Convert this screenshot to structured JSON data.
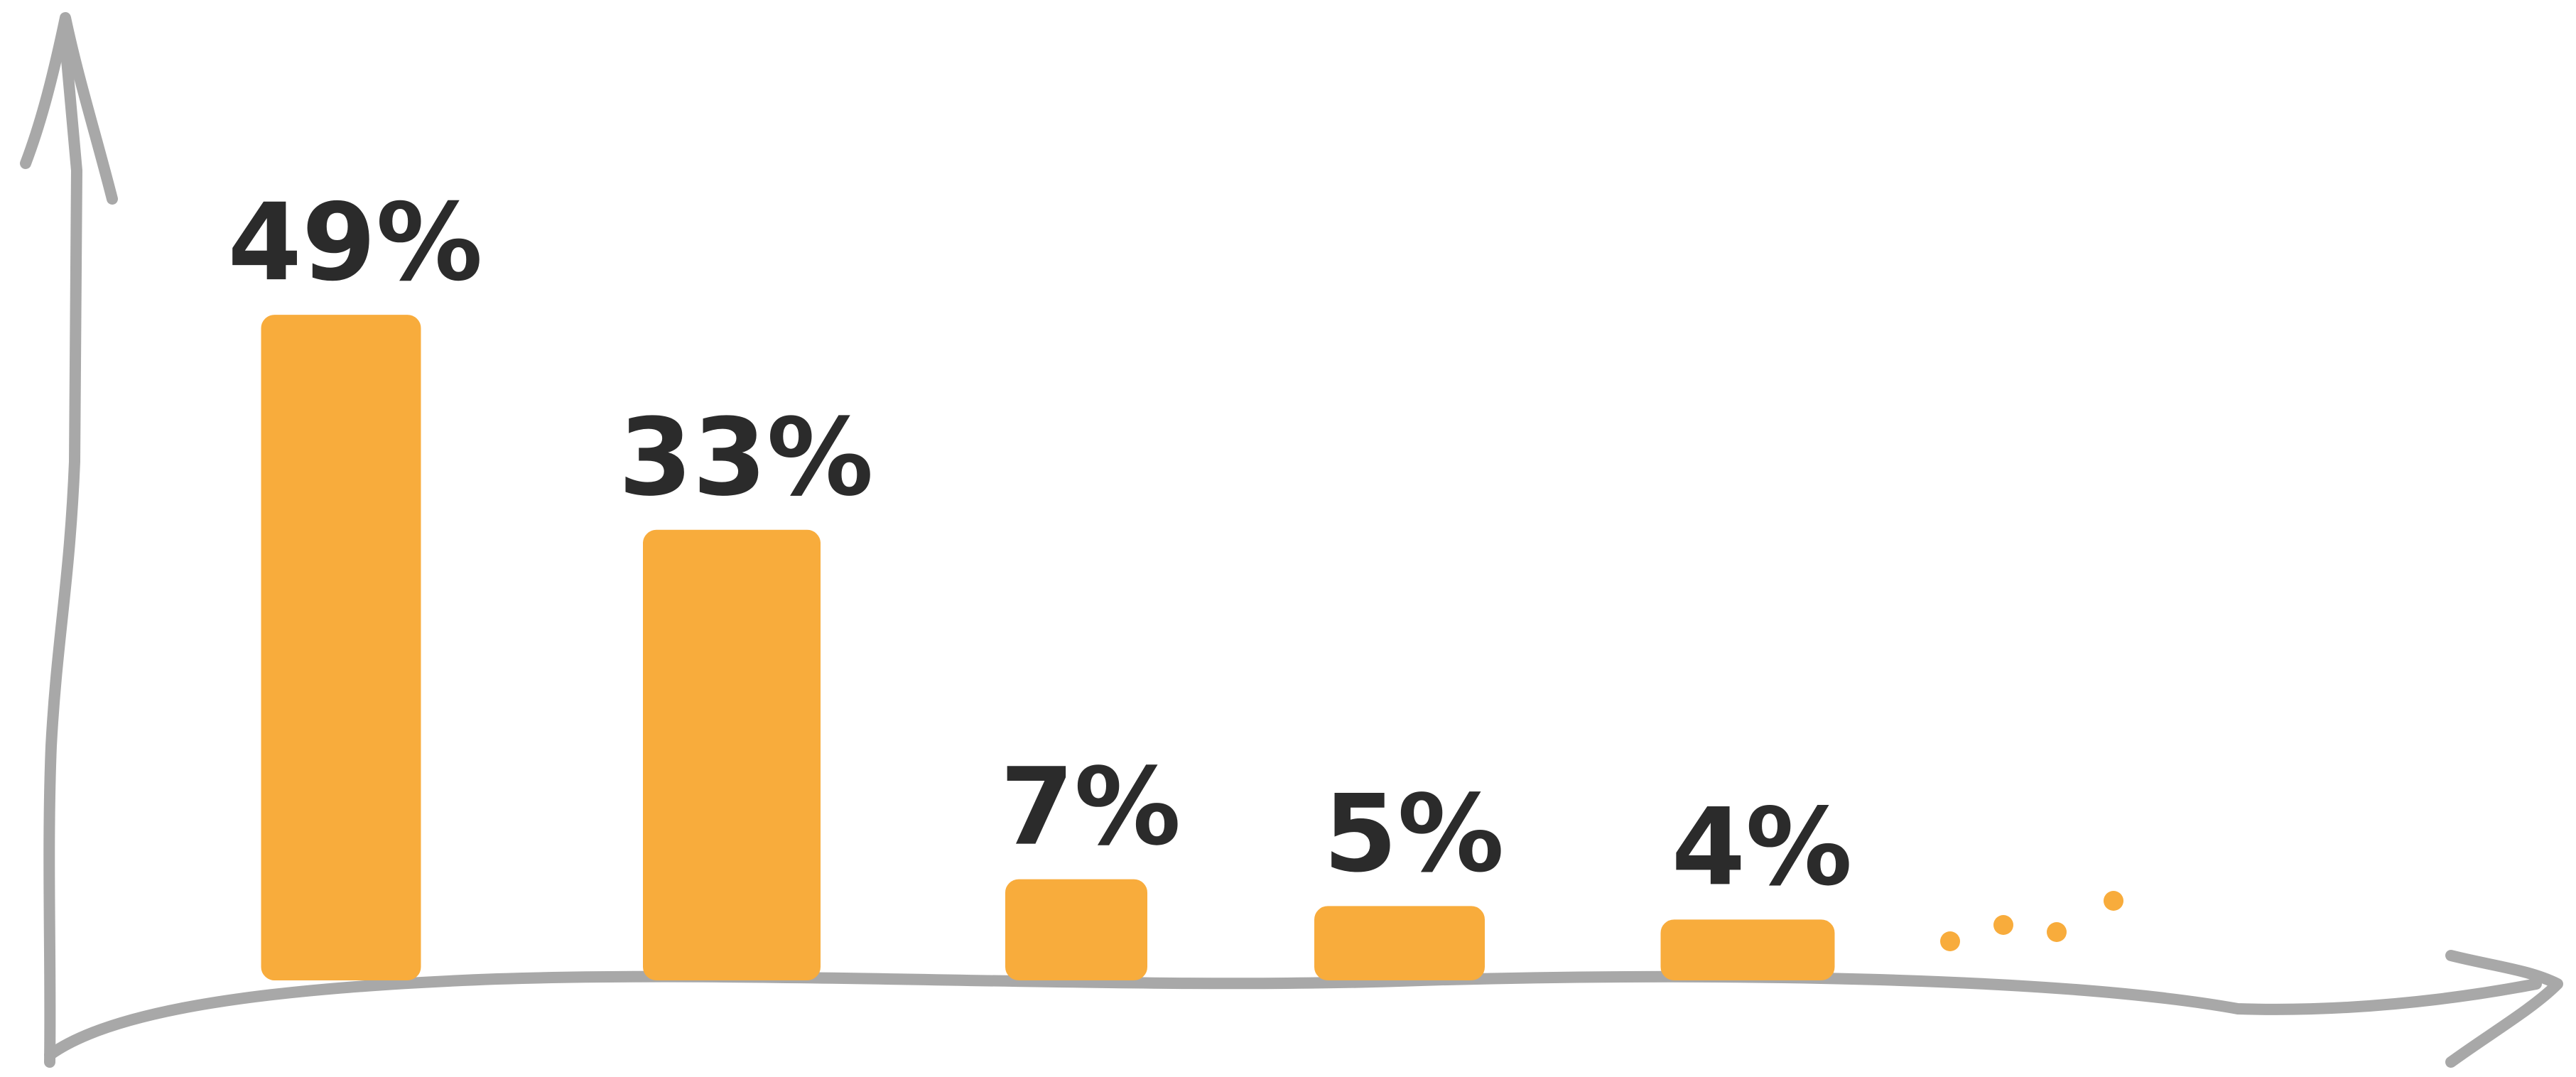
{
  "chart_data": {
    "type": "bar",
    "values": [
      49,
      33,
      7,
      5,
      4
    ],
    "data_labels": [
      "49%",
      "33%",
      "7%",
      "5%",
      "4%"
    ],
    "unit": "%",
    "ylim": [
      0,
      60
    ],
    "grid": false,
    "legend": "none",
    "trailing_indicator": "...",
    "style": "hand-drawn"
  },
  "colors": {
    "bar": "#F8AC3C",
    "axis": "#A8A8A8",
    "label": "#2B2B2B"
  }
}
